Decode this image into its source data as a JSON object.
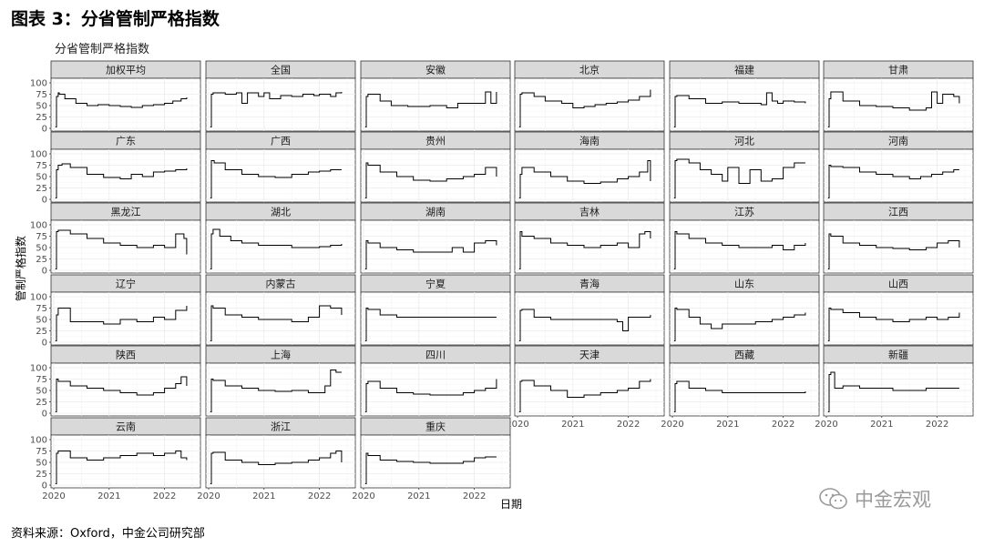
{
  "figure_title": "图表 3：分省管制严格指数",
  "source": "资料来源：Oxford，中金公司研究部",
  "watermark": {
    "text": "中金宏观",
    "icon": "wechat-icon"
  },
  "chart_data": {
    "type": "line",
    "title": "分省管制严格指数",
    "xlabel": "日期",
    "ylabel": "管制严格指数",
    "ylim": [
      0,
      100
    ],
    "yticks": [
      0,
      25,
      50,
      75,
      100
    ],
    "xlim": [
      2020.0,
      2022.5
    ],
    "xticks": [
      2020,
      2021,
      2022
    ],
    "grid": true,
    "line_color": "#000000",
    "panels": [
      {
        "name": "加权平均",
        "x": [
          2020.03,
          2020.05,
          2020.08,
          2020.1,
          2020.2,
          2020.4,
          2020.6,
          2020.8,
          2021.0,
          2021.2,
          2021.4,
          2021.6,
          2021.8,
          2022.0,
          2022.15,
          2022.3,
          2022.4
        ],
        "y": [
          3,
          70,
          78,
          75,
          65,
          55,
          50,
          52,
          50,
          48,
          46,
          50,
          52,
          55,
          60,
          65,
          68
        ]
      },
      {
        "name": "全国",
        "x": [
          2020.03,
          2020.05,
          2020.08,
          2020.1,
          2020.3,
          2020.5,
          2020.6,
          2020.7,
          2020.9,
          2021.0,
          2021.1,
          2021.3,
          2021.5,
          2021.7,
          2021.9,
          2022.0,
          2022.2,
          2022.3,
          2022.4
        ],
        "y": [
          3,
          75,
          78,
          78,
          75,
          78,
          55,
          78,
          70,
          78,
          65,
          72,
          70,
          75,
          72,
          75,
          70,
          78,
          80
        ]
      },
      {
        "name": "安徽",
        "x": [
          2020.03,
          2020.05,
          2020.08,
          2020.3,
          2020.5,
          2020.8,
          2021.0,
          2021.2,
          2021.5,
          2021.7,
          2021.9,
          2022.1,
          2022.2,
          2022.3,
          2022.4
        ],
        "y": [
          3,
          70,
          75,
          60,
          50,
          48,
          48,
          50,
          45,
          55,
          55,
          55,
          80,
          55,
          80
        ]
      },
      {
        "name": "北京",
        "x": [
          2020.03,
          2020.05,
          2020.08,
          2020.3,
          2020.5,
          2020.8,
          2021.0,
          2021.2,
          2021.4,
          2021.6,
          2021.8,
          2022.0,
          2022.2,
          2022.4
        ],
        "y": [
          3,
          75,
          78,
          70,
          60,
          55,
          45,
          48,
          52,
          55,
          58,
          62,
          70,
          85
        ]
      },
      {
        "name": "福建",
        "x": [
          2020.03,
          2020.05,
          2020.08,
          2020.3,
          2020.6,
          2020.9,
          2021.2,
          2021.4,
          2021.6,
          2021.7,
          2021.8,
          2021.9,
          2022.0,
          2022.2,
          2022.4
        ],
        "y": [
          3,
          70,
          72,
          65,
          55,
          58,
          55,
          55,
          52,
          78,
          60,
          55,
          60,
          58,
          55
        ]
      },
      {
        "name": "甘肃",
        "x": [
          2020.03,
          2020.05,
          2020.08,
          2020.3,
          2020.6,
          2020.9,
          2021.2,
          2021.5,
          2021.8,
          2021.9,
          2022.0,
          2022.1,
          2022.3,
          2022.4
        ],
        "y": [
          3,
          65,
          80,
          60,
          50,
          48,
          45,
          40,
          45,
          80,
          55,
          75,
          70,
          55
        ]
      },
      {
        "name": "广东",
        "x": [
          2020.03,
          2020.05,
          2020.08,
          2020.15,
          2020.3,
          2020.6,
          2020.9,
          2021.2,
          2021.4,
          2021.6,
          2021.8,
          2022.0,
          2022.2,
          2022.4
        ],
        "y": [
          3,
          65,
          75,
          78,
          70,
          55,
          48,
          45,
          55,
          50,
          60,
          62,
          65,
          68
        ]
      },
      {
        "name": "广西",
        "x": [
          2020.03,
          2020.05,
          2020.1,
          2020.3,
          2020.6,
          2020.9,
          2021.2,
          2021.5,
          2021.8,
          2022.0,
          2022.2,
          2022.4
        ],
        "y": [
          3,
          85,
          80,
          65,
          55,
          50,
          48,
          55,
          60,
          62,
          65,
          65
        ]
      },
      {
        "name": "贵州",
        "x": [
          2020.03,
          2020.05,
          2020.08,
          2020.3,
          2020.6,
          2020.9,
          2021.2,
          2021.5,
          2021.8,
          2022.0,
          2022.2,
          2022.4
        ],
        "y": [
          3,
          80,
          75,
          60,
          50,
          42,
          40,
          45,
          50,
          55,
          70,
          50
        ]
      },
      {
        "name": "海南",
        "x": [
          2020.03,
          2020.05,
          2020.08,
          2020.3,
          2020.6,
          2020.9,
          2021.2,
          2021.5,
          2021.8,
          2022.0,
          2022.2,
          2022.35,
          2022.4
        ],
        "y": [
          3,
          55,
          70,
          60,
          50,
          40,
          35,
          38,
          45,
          50,
          60,
          85,
          40
        ]
      },
      {
        "name": "河北",
        "x": [
          2020.03,
          2020.05,
          2020.08,
          2020.3,
          2020.5,
          2020.7,
          2020.9,
          2021.0,
          2021.2,
          2021.4,
          2021.6,
          2021.8,
          2022.0,
          2022.2,
          2022.4
        ],
        "y": [
          3,
          85,
          88,
          80,
          65,
          55,
          40,
          70,
          35,
          65,
          40,
          45,
          70,
          80,
          80
        ]
      },
      {
        "name": "河南",
        "x": [
          2020.03,
          2020.05,
          2020.08,
          2020.3,
          2020.6,
          2020.9,
          2021.2,
          2021.5,
          2021.7,
          2021.9,
          2022.1,
          2022.3,
          2022.4
        ],
        "y": [
          3,
          75,
          72,
          70,
          60,
          55,
          50,
          45,
          50,
          55,
          60,
          65,
          65
        ]
      },
      {
        "name": "黑龙江",
        "x": [
          2020.03,
          2020.05,
          2020.08,
          2020.3,
          2020.6,
          2020.9,
          2021.2,
          2021.5,
          2021.8,
          2022.0,
          2022.2,
          2022.35,
          2022.4
        ],
        "y": [
          3,
          85,
          88,
          80,
          70,
          60,
          55,
          50,
          55,
          50,
          80,
          70,
          35
        ]
      },
      {
        "name": "湖北",
        "x": [
          2020.03,
          2020.05,
          2020.08,
          2020.2,
          2020.4,
          2020.6,
          2020.9,
          2021.2,
          2021.5,
          2021.8,
          2022.0,
          2022.2,
          2022.4
        ],
        "y": [
          3,
          80,
          90,
          75,
          65,
          60,
          55,
          55,
          50,
          50,
          52,
          55,
          58
        ]
      },
      {
        "name": "湖南",
        "x": [
          2020.03,
          2020.05,
          2020.08,
          2020.3,
          2020.6,
          2020.9,
          2021.2,
          2021.5,
          2021.6,
          2021.8,
          2022.0,
          2022.2,
          2022.4
        ],
        "y": [
          3,
          65,
          60,
          50,
          45,
          40,
          40,
          40,
          50,
          40,
          60,
          65,
          55
        ]
      },
      {
        "name": "吉林",
        "x": [
          2020.03,
          2020.05,
          2020.08,
          2020.3,
          2020.6,
          2020.9,
          2021.2,
          2021.5,
          2021.8,
          2022.0,
          2022.2,
          2022.3,
          2022.4
        ],
        "y": [
          3,
          85,
          75,
          70,
          60,
          55,
          50,
          55,
          60,
          50,
          80,
          85,
          70
        ]
      },
      {
        "name": "江苏",
        "x": [
          2020.03,
          2020.05,
          2020.08,
          2020.3,
          2020.6,
          2020.9,
          2021.2,
          2021.5,
          2021.8,
          2022.0,
          2022.2,
          2022.4
        ],
        "y": [
          3,
          85,
          80,
          70,
          60,
          55,
          50,
          50,
          55,
          45,
          55,
          60
        ]
      },
      {
        "name": "江西",
        "x": [
          2020.03,
          2020.05,
          2020.08,
          2020.3,
          2020.6,
          2020.9,
          2021.2,
          2021.5,
          2021.8,
          2022.0,
          2022.2,
          2022.4
        ],
        "y": [
          3,
          80,
          75,
          60,
          55,
          50,
          48,
          45,
          50,
          60,
          65,
          50
        ]
      },
      {
        "name": "辽宁",
        "x": [
          2020.03,
          2020.05,
          2020.08,
          2020.3,
          2020.6,
          2020.9,
          2021.2,
          2021.5,
          2021.8,
          2022.0,
          2022.2,
          2022.4
        ],
        "y": [
          3,
          60,
          75,
          45,
          45,
          40,
          50,
          45,
          55,
          50,
          70,
          80
        ]
      },
      {
        "name": "内蒙古",
        "x": [
          2020.03,
          2020.05,
          2020.08,
          2020.3,
          2020.6,
          2020.9,
          2021.2,
          2021.5,
          2021.8,
          2022.0,
          2022.2,
          2022.4
        ],
        "y": [
          3,
          80,
          75,
          60,
          55,
          50,
          50,
          45,
          55,
          80,
          75,
          60
        ]
      },
      {
        "name": "宁夏",
        "x": [
          2020.03,
          2020.05,
          2020.08,
          2020.3,
          2020.6,
          2020.9,
          2021.2,
          2021.5,
          2021.8,
          2022.0,
          2022.2,
          2022.4
        ],
        "y": [
          3,
          75,
          72,
          60,
          55,
          55,
          55,
          55,
          55,
          55,
          55,
          55
        ]
      },
      {
        "name": "青海",
        "x": [
          2020.03,
          2020.05,
          2020.08,
          2020.3,
          2020.6,
          2020.9,
          2021.2,
          2021.5,
          2021.8,
          2021.9,
          2022.0,
          2022.2,
          2022.4
        ],
        "y": [
          3,
          70,
          72,
          55,
          50,
          50,
          50,
          50,
          45,
          25,
          55,
          55,
          60
        ]
      },
      {
        "name": "山东",
        "x": [
          2020.03,
          2020.05,
          2020.08,
          2020.3,
          2020.5,
          2020.7,
          2020.9,
          2021.2,
          2021.5,
          2021.8,
          2022.0,
          2022.2,
          2022.4
        ],
        "y": [
          3,
          75,
          72,
          55,
          40,
          30,
          40,
          40,
          45,
          50,
          55,
          60,
          65
        ]
      },
      {
        "name": "山西",
        "x": [
          2020.03,
          2020.05,
          2020.08,
          2020.3,
          2020.6,
          2020.9,
          2021.2,
          2021.5,
          2021.8,
          2022.0,
          2022.2,
          2022.4
        ],
        "y": [
          3,
          75,
          72,
          65,
          55,
          50,
          45,
          50,
          55,
          50,
          55,
          65
        ]
      },
      {
        "name": "陕西",
        "x": [
          2020.03,
          2020.05,
          2020.08,
          2020.3,
          2020.6,
          2020.9,
          2021.2,
          2021.5,
          2021.8,
          2022.0,
          2022.2,
          2022.3,
          2022.4
        ],
        "y": [
          3,
          75,
          70,
          60,
          55,
          50,
          45,
          40,
          45,
          55,
          65,
          80,
          60
        ]
      },
      {
        "name": "上海",
        "x": [
          2020.03,
          2020.05,
          2020.08,
          2020.3,
          2020.6,
          2020.9,
          2021.2,
          2021.5,
          2021.8,
          2022.0,
          2022.1,
          2022.2,
          2022.3,
          2022.4
        ],
        "y": [
          3,
          75,
          72,
          60,
          55,
          50,
          48,
          50,
          45,
          45,
          60,
          95,
          90,
          90
        ]
      },
      {
        "name": "四川",
        "x": [
          2020.03,
          2020.05,
          2020.08,
          2020.3,
          2020.6,
          2020.9,
          2021.2,
          2021.5,
          2021.8,
          2022.0,
          2022.2,
          2022.4
        ],
        "y": [
          3,
          65,
          70,
          55,
          45,
          42,
          40,
          40,
          45,
          50,
          55,
          75
        ]
      },
      {
        "name": "天津",
        "x": [
          2020.03,
          2020.05,
          2020.08,
          2020.3,
          2020.6,
          2020.9,
          2021.2,
          2021.5,
          2021.8,
          2022.0,
          2022.2,
          2022.4
        ],
        "y": [
          3,
          70,
          72,
          60,
          50,
          35,
          40,
          45,
          50,
          55,
          70,
          75
        ]
      },
      {
        "name": "西藏",
        "x": [
          2020.03,
          2020.05,
          2020.08,
          2020.3,
          2020.6,
          2020.9,
          2021.2,
          2021.5,
          2021.8,
          2022.0,
          2022.2,
          2022.4
        ],
        "y": [
          3,
          65,
          70,
          55,
          50,
          45,
          45,
          45,
          45,
          45,
          45,
          48
        ]
      },
      {
        "name": "新疆",
        "x": [
          2020.03,
          2020.05,
          2020.08,
          2020.15,
          2020.3,
          2020.6,
          2020.9,
          2021.2,
          2021.5,
          2021.8,
          2022.0,
          2022.2,
          2022.4
        ],
        "y": [
          3,
          85,
          90,
          55,
          60,
          55,
          55,
          50,
          50,
          55,
          55,
          55,
          55
        ]
      },
      {
        "name": "云南",
        "x": [
          2020.03,
          2020.05,
          2020.08,
          2020.3,
          2020.6,
          2020.9,
          2021.2,
          2021.5,
          2021.8,
          2022.0,
          2022.2,
          2022.3,
          2022.4
        ],
        "y": [
          3,
          70,
          75,
          60,
          55,
          60,
          65,
          70,
          65,
          70,
          75,
          60,
          55
        ]
      },
      {
        "name": "浙江",
        "x": [
          2020.03,
          2020.05,
          2020.08,
          2020.3,
          2020.6,
          2020.9,
          2021.2,
          2021.5,
          2021.8,
          2022.0,
          2022.2,
          2022.3,
          2022.4
        ],
        "y": [
          3,
          70,
          72,
          55,
          50,
          45,
          48,
          50,
          55,
          60,
          70,
          75,
          50
        ]
      },
      {
        "name": "重庆",
        "x": [
          2020.03,
          2020.05,
          2020.08,
          2020.3,
          2020.6,
          2020.9,
          2021.2,
          2021.5,
          2021.8,
          2022.0,
          2022.2,
          2022.4
        ],
        "y": [
          3,
          70,
          65,
          55,
          52,
          50,
          48,
          48,
          52,
          60,
          62,
          62
        ]
      }
    ]
  }
}
